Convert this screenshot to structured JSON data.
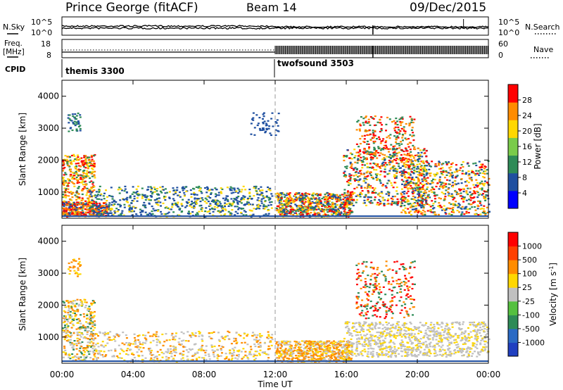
{
  "header": {
    "station": "Prince George (fitACF)",
    "beam": "Beam 14",
    "date": "09/Dec/2015"
  },
  "left_labels": {
    "nsky": "N.Sky",
    "freq_top": "Freq.",
    "freq_unit": "[MHz]",
    "cpid": "CPID"
  },
  "right_labels": {
    "nsearch": "N.Search",
    "nave": "Nave"
  },
  "colors": {
    "radar_red": "#ff0000",
    "radar_orange": "#ff8c00",
    "radar_yellow": "#ffd700",
    "radar_green": "#2e8b57",
    "radar_blue": "#1f4fa0",
    "ground_gray": "#c0c0c0"
  },
  "chart_data": [
    {
      "type": "line",
      "panel": "noise",
      "ylabels_left": [
        "10^5",
        "10^0"
      ],
      "ylabels_right": [
        "10^5",
        "10^0"
      ]
    },
    {
      "type": "line",
      "panel": "frequency-nave",
      "ylim_left": [
        8,
        18
      ],
      "ylim_right": [
        0,
        60
      ],
      "yticks_left": [
        "18",
        "8"
      ],
      "yticks_right": [
        "60",
        "0"
      ]
    },
    {
      "type": "table",
      "panel": "cpid",
      "segments": [
        {
          "name": "themis 3300",
          "start_hour": 0
        },
        {
          "name": "twofsound 3503",
          "start_hour": 12
        }
      ]
    },
    {
      "type": "heatmap",
      "panel": "power",
      "ylabel": "Slant Range [km]",
      "ylim": [
        180,
        4500
      ],
      "yticks": [
        "1000",
        "2000",
        "3000",
        "4000"
      ],
      "colorbar": {
        "label": "Power [dB]",
        "ticks": [
          "28",
          "24",
          "20",
          "16",
          "12",
          "8",
          "4"
        ],
        "colors": [
          "#0000ff",
          "#1f4fa0",
          "#2e8b57",
          "#7acb4a",
          "#ffd700",
          "#ff8c00",
          "#ff0000"
        ]
      }
    },
    {
      "type": "heatmap",
      "panel": "velocity",
      "ylabel": "Slant Range [km]",
      "ylim": [
        180,
        4500
      ],
      "yticks": [
        "1000",
        "2000",
        "3000",
        "4000"
      ],
      "colorbar": {
        "label": "Velocity [m s",
        "unit_sup": "-1",
        "label_end": "]",
        "ticks": [
          "1000",
          "500",
          "100",
          "25",
          "-25",
          "-100",
          "-500",
          "-1000"
        ],
        "colors": [
          "#2040c0",
          "#2a6ac4",
          "#2e8b57",
          "#55c040",
          "#c0c0c0",
          "#ffd700",
          "#ff8c00",
          "#ff4000",
          "#ff0000"
        ]
      }
    }
  ],
  "x_axis": {
    "label": "Time UT",
    "ticks": [
      "00:00",
      "04:00",
      "08:00",
      "12:00",
      "16:00",
      "20:00",
      "00:00"
    ]
  }
}
